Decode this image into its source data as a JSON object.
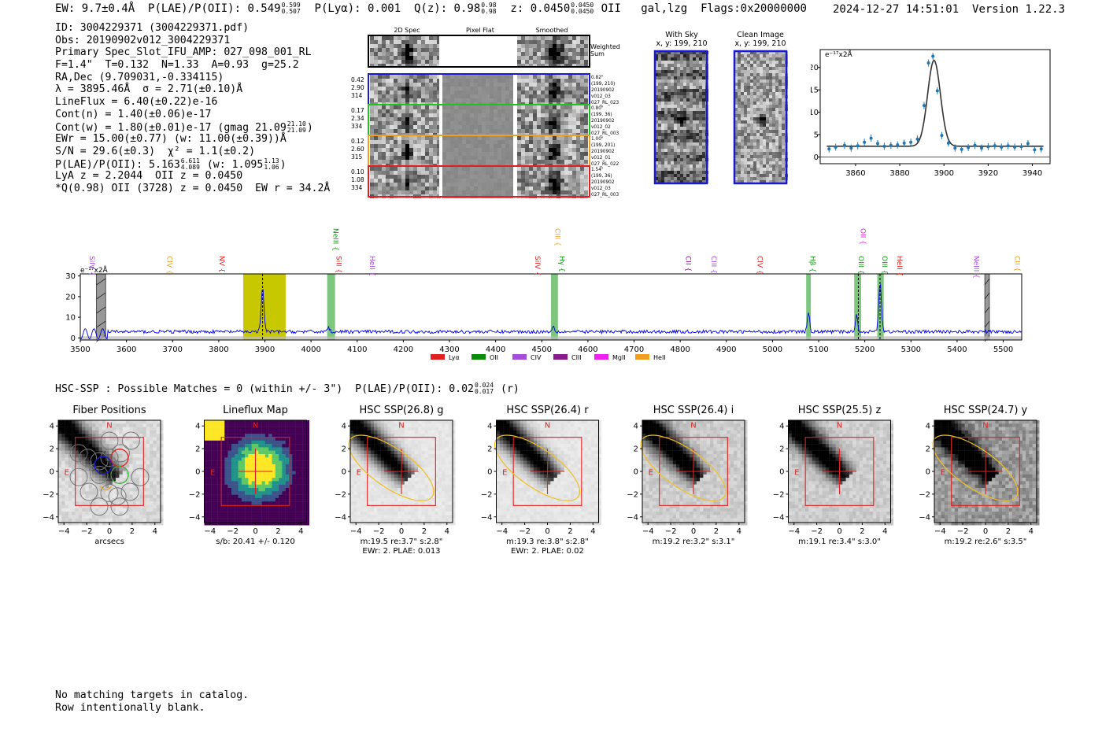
{
  "header": {
    "ew": "EW: 9.7±0.4Å",
    "plae_label": "P(LAE)/P(OII): 0.549",
    "plae_hi": "0.599",
    "plae_lo": "0.507",
    "plya": "P(Lyα): 0.001",
    "q_label": "Q(z): 0.98",
    "q_hi": "0.98",
    "q_lo": "0.98",
    "z_label": "z: 0.0450",
    "z_hi": "0.0450",
    "z_lo": "0.0450",
    "z_line": "OII",
    "cls": "gal,lzg",
    "flags": "Flags:0x20000000",
    "timestamp": "2024-12-27 14:51:01",
    "version": "Version 1.22.3"
  },
  "info": {
    "id": "ID: 3004229371 (3004229371.pdf)",
    "obs": "Obs: 20190902v012_3004229371",
    "primary": "Primary Spec_Slot_IFU_AMP: 027_098_001_RL",
    "fit": "F=1.4\"  T=0.132  N=1.33  A=0.93  g=25.2",
    "radec": "RA,Dec (9.709031,-0.334115)",
    "lambda": "λ = 3895.46Å  σ = 2.71(±0.10)Å",
    "lineflux": "LineFlux = 6.40(±0.22)e-16",
    "contn": "Cont(n) = 1.40(±0.06)e-17",
    "contw": "Cont(w) = 1.80(±0.01)e-17 (gmag 21.09",
    "contw_hi": "21.10",
    "contw_lo": "21.09",
    "ewr": "EWr = 15.00(±0.77) (w: 11.00(±0.39))Å",
    "sn": "S/N = 29.6(±0.3)  χ² = 1.1(±0.2)",
    "plae": "P(LAE)/P(OII): 5.163",
    "plae_hi": "6.611",
    "plae_lo": "4.089",
    "plae_w": "(w: 1.095",
    "plae_w_hi": "1.13",
    "plae_w_lo": "1.06",
    "lya": "LyA z = 2.2044  OII z = 0.0450",
    "q": "*Q(0.98) OII (3728) z = 0.0450  EW r = 34.2Å"
  },
  "cutouts": {
    "col_2d": "2D Spec",
    "col_flat": "Pixel Flat",
    "col_smooth": "Smoothed",
    "weighted": [
      "Weighted",
      "Sum"
    ],
    "fibers": [
      {
        "color": "#1a1acc",
        "left": [
          "0.42",
          "2.90",
          "314"
        ],
        "right": [
          "0.82\"",
          "(199, 210)",
          "20190902",
          "v012_03",
          "027_RL_023"
        ]
      },
      {
        "color": "#22c022",
        "left": [
          "0.17",
          "2.34",
          "334"
        ],
        "right": [
          "0.80\"",
          "(199, 36)",
          "20190902",
          "v012_02",
          "027_RL_003"
        ]
      },
      {
        "color": "#f0a020",
        "left": [
          "0.12",
          "2.60",
          "315"
        ],
        "right": [
          "1.00\"",
          "(199, 201)",
          "20190902",
          "v012_01",
          "027_RL_022"
        ]
      },
      {
        "color": "#e02020",
        "left": [
          "0.10",
          "1.08",
          "334"
        ],
        "right": [
          "1.54\"",
          "(199, 36)",
          "20190902",
          "v012_03",
          "027_RL_003"
        ]
      }
    ],
    "with_sky": "With Sky",
    "with_sky_xy": "x, y: 199, 210",
    "clean": "Clean Image",
    "clean_xy": "x, y: 199, 210"
  },
  "zoom_chart": {
    "type": "scatter",
    "ylabel_exp": "e",
    "ylabel": "x2Å",
    "x": [
      3848,
      3851,
      3855,
      3858,
      3861,
      3864,
      3867,
      3870,
      3873,
      3876,
      3879,
      3882,
      3885,
      3888,
      3891,
      3893,
      3895,
      3897,
      3899,
      3902,
      3905,
      3908,
      3911,
      3914,
      3917,
      3920,
      3923,
      3926,
      3929,
      3932,
      3935,
      3938,
      3941,
      3944
    ],
    "y": [
      1.8,
      2.2,
      2.6,
      2.0,
      2.5,
      3.3,
      4.2,
      3.0,
      2.4,
      2.6,
      2.7,
      3.1,
      3.3,
      4.0,
      11.5,
      21.0,
      22.5,
      14.8,
      4.8,
      3.1,
      2.0,
      1.7,
      2.1,
      2.6,
      2.0,
      2.3,
      2.5,
      2.2,
      2.5,
      2.2,
      2.3,
      3.0,
      1.6,
      1.8
    ],
    "xticks": [
      3860,
      3880,
      3900,
      3920,
      3940
    ],
    "yticks": [
      0,
      5,
      10,
      15,
      20
    ],
    "xlim": [
      3844,
      3948
    ],
    "ylim": [
      -1.5,
      24
    ]
  },
  "spectrum": {
    "type": "line",
    "ylabel_exp": "e",
    "ylabel": "x2Å",
    "xlim": [
      3500,
      5540
    ],
    "ylim": [
      -1,
      31
    ],
    "xticks": [
      3500,
      3600,
      3700,
      3800,
      3900,
      4000,
      4100,
      4200,
      4300,
      4400,
      4500,
      4600,
      4700,
      4800,
      4900,
      5000,
      5100,
      5200,
      5300,
      5400,
      5500
    ],
    "yticks": [
      0,
      10,
      20,
      30
    ],
    "baseline": 3.0,
    "peaks": [
      {
        "x": 3895,
        "h": 21,
        "w": 3
      },
      {
        "x": 4037,
        "h": 2,
        "w": 3
      },
      {
        "x": 4525,
        "h": 2.5,
        "w": 3
      },
      {
        "x": 5078,
        "h": 9,
        "w": 2.5
      },
      {
        "x": 5182,
        "h": 8,
        "w": 2.5
      },
      {
        "x": 5233,
        "h": 24,
        "w": 3
      }
    ],
    "hatched": [
      [
        3535,
        3555
      ],
      [
        5460,
        5470
      ]
    ],
    "yellow": [
      3853,
      3945
    ],
    "green": [
      [
        4035,
        4052
      ],
      [
        4520,
        4535
      ],
      [
        5073,
        5083
      ],
      [
        5177,
        5192
      ],
      [
        5227,
        5241
      ]
    ],
    "lines": [
      {
        "label": "SiIV",
        "x": 3515,
        "color": "#a64ddc",
        "tier": "low"
      },
      {
        "label": "CIV",
        "x": 3683,
        "color": "#f0a020",
        "tier": "low"
      },
      {
        "label": "NV",
        "x": 3797,
        "color": "#e02020",
        "tier": "low"
      },
      {
        "label": "NeIII",
        "x": 4043,
        "color": "#0a9a0a",
        "tier": "high"
      },
      {
        "label": "SiII",
        "x": 4050,
        "color": "#e02020",
        "tier": "low"
      },
      {
        "label": "HeII",
        "x": 4123,
        "color": "#a64ddc",
        "tier": "low"
      },
      {
        "label": "SiIV",
        "x": 4481,
        "color": "#e02020",
        "tier": "low"
      },
      {
        "label": "CIII",
        "x": 4524,
        "color": "#f0a020",
        "tier": "high"
      },
      {
        "label": "Hγ",
        "x": 4534,
        "color": "#0a9a0a",
        "tier": "low"
      },
      {
        "label": "CII",
        "x": 4807,
        "color": "#8a1a8a",
        "tier": "low"
      },
      {
        "label": "CIII",
        "x": 4863,
        "color": "#a64ddc",
        "tier": "low"
      },
      {
        "label": "CIV",
        "x": 4963,
        "color": "#e02020",
        "tier": "low"
      },
      {
        "label": "Hβ",
        "x": 5077,
        "color": "#0a9a0a",
        "tier": "low"
      },
      {
        "label": "OII",
        "x": 5186,
        "color": "#ee22ee",
        "tier": "high"
      },
      {
        "label": "OIII",
        "x": 5182,
        "color": "#0a9a0a",
        "tier": "low"
      },
      {
        "label": "OIII",
        "x": 5233,
        "color": "#0a9a0a",
        "tier": "low"
      },
      {
        "label": "HeII",
        "x": 5265,
        "color": "#e02020",
        "tier": "low"
      },
      {
        "label": "NeIII",
        "x": 5432,
        "color": "#a64ddc",
        "tier": "low"
      },
      {
        "label": "CII",
        "x": 5520,
        "color": "#f0a020",
        "tier": "low"
      }
    ],
    "legend": [
      {
        "label": "Lyα",
        "color": "#e02020"
      },
      {
        "label": "OII",
        "color": "#0a8a0a"
      },
      {
        "label": "CIV",
        "color": "#a64ddc"
      },
      {
        "label": "CIII",
        "color": "#8a1a8a"
      },
      {
        "label": "MgII",
        "color": "#ee22ee"
      },
      {
        "label": "HeII",
        "color": "#f0a020"
      }
    ]
  },
  "hsc": {
    "header_label": "HSC-SSP : Possible Matches = 0 (within +/- 3\")",
    "plae_label": "P(LAE)/P(OII): 0.02",
    "plae_hi": "0.024",
    "plae_lo": "0.017",
    "plae_band": "(r)",
    "panels": [
      {
        "title": "Fiber Positions",
        "kind": "fibers",
        "cap1": "arcsecs",
        "cap2": ""
      },
      {
        "title": "Lineflux Map",
        "kind": "flux",
        "cap1": "s/b: 20.41 +/- 0.120",
        "cap2": ""
      },
      {
        "title": "HSC SSP(26.8) g",
        "kind": "img",
        "noise": 0.15,
        "bg": 0.9,
        "ellipse": true,
        "cap1": "m:19.5  re:3.7\"  s:2.8\"",
        "cap2": "EWr: 2. PLAE: 0.013"
      },
      {
        "title": "HSC SSP(26.4) r",
        "kind": "img",
        "noise": 0.15,
        "bg": 0.9,
        "ellipse": true,
        "cap1": "m:19.3  re:3.8\"  s:2.8\"",
        "cap2": "EWr: 2. PLAE: 0.02"
      },
      {
        "title": "HSC SSP(26.4) i",
        "kind": "img",
        "noise": 0.35,
        "bg": 0.8,
        "ellipse": true,
        "cap1": "m:19.2  re:3.2\"  s:3.1\"",
        "cap2": ""
      },
      {
        "title": "HSC SSP(25.5) z",
        "kind": "img",
        "noise": 0.35,
        "bg": 0.8,
        "ellipse": false,
        "cap1": "m:19.1  re:3.4\"  s:3.0\"",
        "cap2": ""
      },
      {
        "title": "HSC SSP(24.7) y",
        "kind": "img",
        "noise": 0.7,
        "bg": 0.6,
        "ellipse": true,
        "cap1": "m:19.2  re:2.6\"  s:3.5\"",
        "cap2": ""
      }
    ],
    "ticks": [
      -4,
      -2,
      0,
      2,
      4
    ],
    "n_label": "N",
    "e_label": "E"
  },
  "footer": {
    "line1": "No matching targets in catalog.",
    "line2": "Row intentionally blank."
  }
}
